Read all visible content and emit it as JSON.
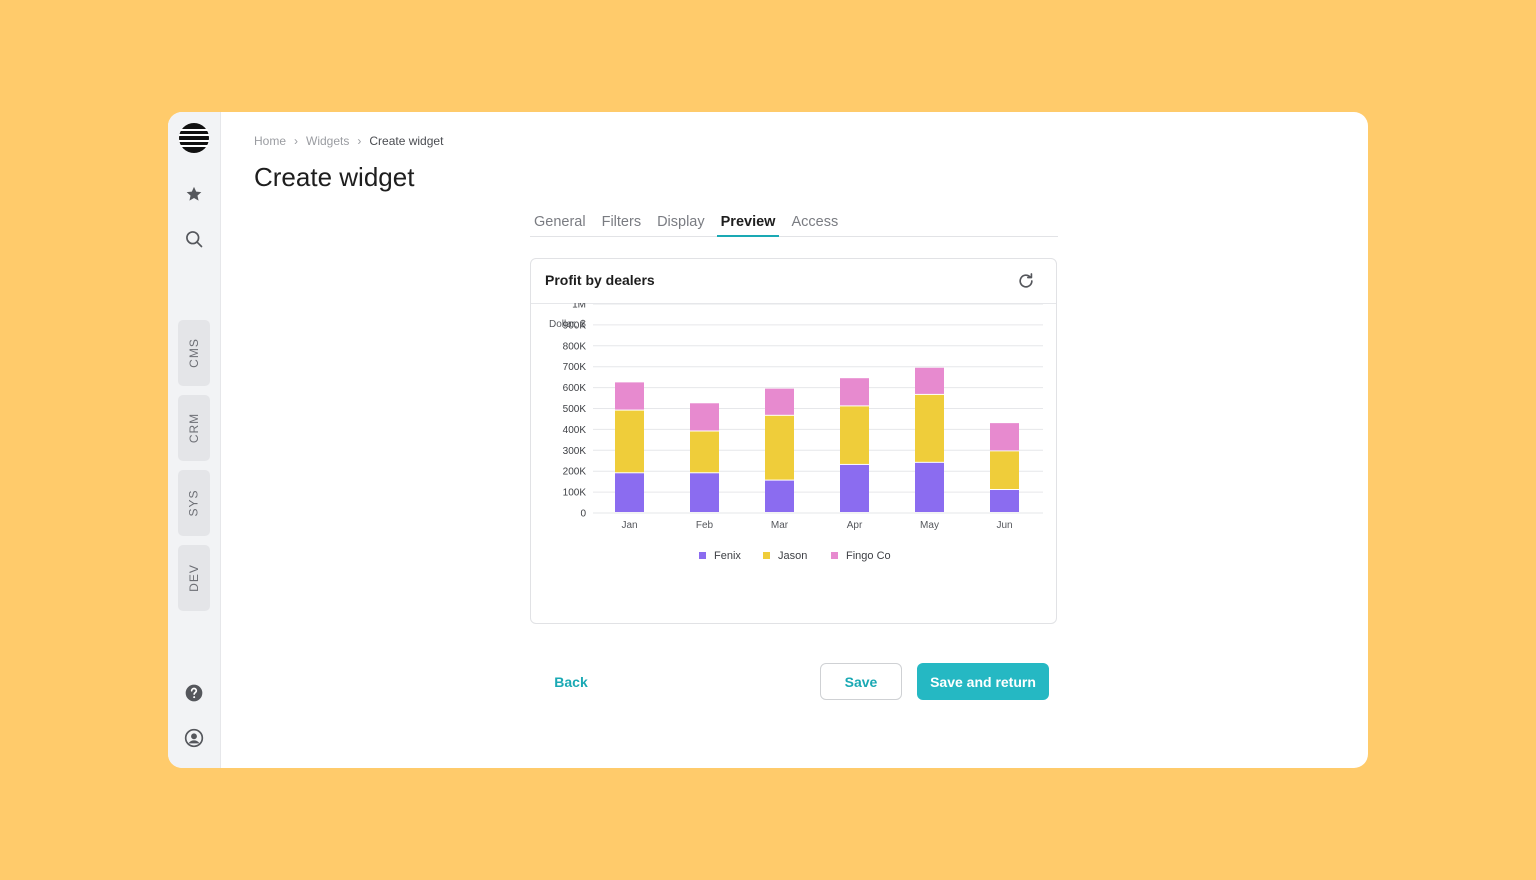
{
  "rail": {
    "apps": [
      "CMS",
      "CRM",
      "SYS",
      "DEV"
    ]
  },
  "breadcrumb": [
    "Home",
    "Widgets",
    "Create widget"
  ],
  "page": {
    "title": "Create widget"
  },
  "tabs": [
    {
      "label": "General",
      "active": false
    },
    {
      "label": "Filters",
      "active": false
    },
    {
      "label": "Display",
      "active": false
    },
    {
      "label": "Preview",
      "active": true
    },
    {
      "label": "Access",
      "active": false
    }
  ],
  "card": {
    "title": "Profit by dealers"
  },
  "chart_data": {
    "type": "bar",
    "stacked": true,
    "ylabel": "Dollar, $",
    "categories": [
      "Jan",
      "Feb",
      "Mar",
      "Apr",
      "May",
      "Jun"
    ],
    "y_ticks": [
      "0",
      "100K",
      "200K",
      "300K",
      "400K",
      "500K",
      "600K",
      "700K",
      "800K",
      "900K",
      "1M"
    ],
    "ylim": [
      0,
      1000000
    ],
    "grid": true,
    "legend": "bottom",
    "series": [
      {
        "name": "Fenix",
        "color": "#8B6CF0",
        "values": [
          190000,
          190000,
          155000,
          230000,
          240000,
          110000
        ]
      },
      {
        "name": "Jason",
        "color": "#EFCD3A",
        "values": [
          300000,
          200000,
          310000,
          280000,
          325000,
          185000
        ]
      },
      {
        "name": "Fingo Co",
        "color": "#E78ACF",
        "values": [
          135000,
          135000,
          130000,
          135000,
          130000,
          135000
        ]
      }
    ]
  },
  "actions": {
    "back": "Back",
    "save": "Save",
    "save_return": "Save and return"
  },
  "colors": {
    "accent": "#25b8c3",
    "background": "#FFCB6B"
  }
}
